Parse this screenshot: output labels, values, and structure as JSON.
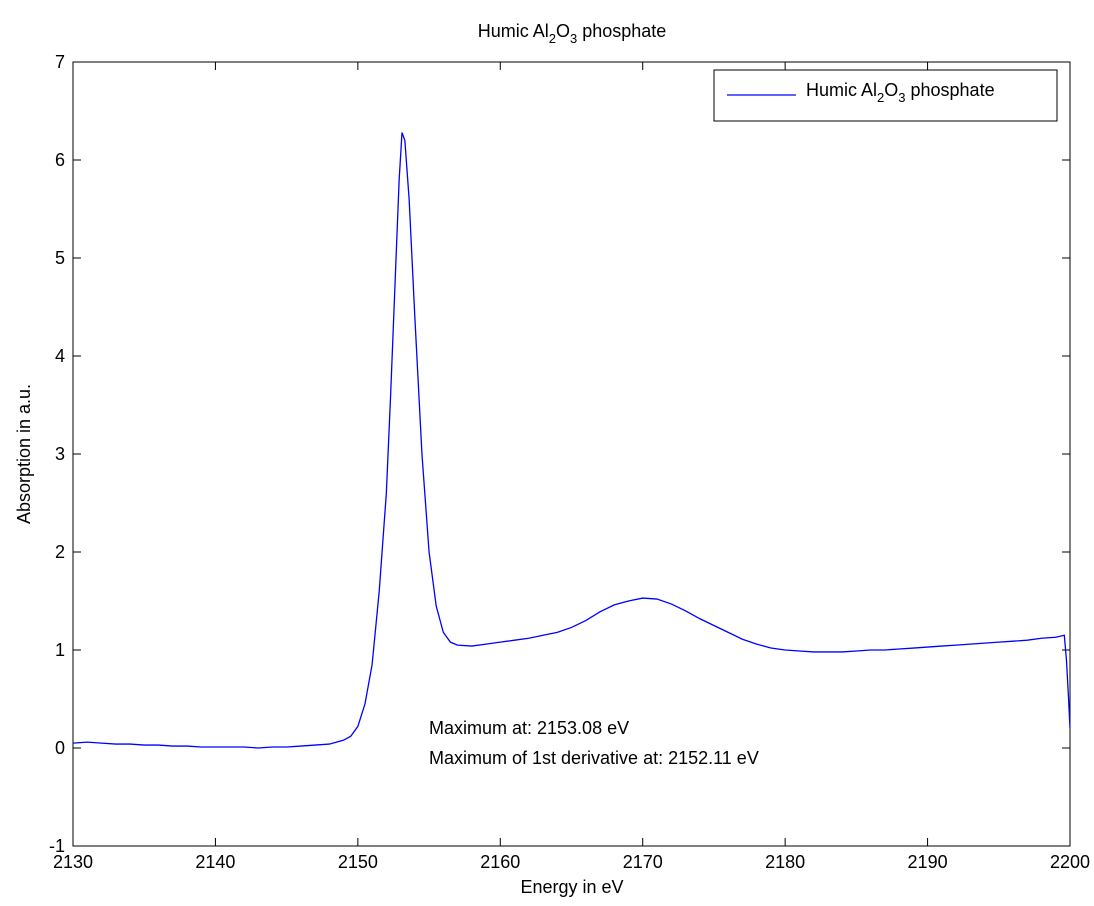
{
  "chart_data": {
    "type": "line",
    "title": {
      "pre": "Humic Al",
      "sub1": "2",
      "mid": "O",
      "sub2": "3",
      "post": " phosphate"
    },
    "xlabel": "Energy in eV",
    "ylabel": "Absorption in a.u.",
    "xlim": [
      2130,
      2200
    ],
    "ylim": [
      -1,
      7
    ],
    "xticks": [
      2130,
      2140,
      2150,
      2160,
      2170,
      2180,
      2190,
      2200
    ],
    "yticks": [
      -1,
      0,
      1,
      2,
      3,
      4,
      5,
      6,
      7
    ],
    "grid": false,
    "legend_position": "top-right",
    "series": [
      {
        "name": {
          "pre": "Humic Al",
          "sub1": "2",
          "mid": "O",
          "sub2": "3",
          "post": " phosphate"
        },
        "color": "#0000ff",
        "points": [
          [
            2130.0,
            0.05
          ],
          [
            2131.0,
            0.06
          ],
          [
            2132.0,
            0.05
          ],
          [
            2133.0,
            0.04
          ],
          [
            2134.0,
            0.04
          ],
          [
            2135.0,
            0.03
          ],
          [
            2136.0,
            0.03
          ],
          [
            2137.0,
            0.02
          ],
          [
            2138.0,
            0.02
          ],
          [
            2139.0,
            0.01
          ],
          [
            2140.0,
            0.01
          ],
          [
            2141.0,
            0.01
          ],
          [
            2142.0,
            0.01
          ],
          [
            2143.0,
            0.0
          ],
          [
            2144.0,
            0.01
          ],
          [
            2145.0,
            0.01
          ],
          [
            2146.0,
            0.02
          ],
          [
            2147.0,
            0.03
          ],
          [
            2148.0,
            0.04
          ],
          [
            2149.0,
            0.08
          ],
          [
            2149.5,
            0.12
          ],
          [
            2150.0,
            0.22
          ],
          [
            2150.5,
            0.45
          ],
          [
            2151.0,
            0.85
          ],
          [
            2151.5,
            1.6
          ],
          [
            2152.0,
            2.6
          ],
          [
            2152.3,
            3.6
          ],
          [
            2152.6,
            4.7
          ],
          [
            2152.9,
            5.8
          ],
          [
            2153.1,
            6.28
          ],
          [
            2153.3,
            6.2
          ],
          [
            2153.6,
            5.6
          ],
          [
            2154.0,
            4.4
          ],
          [
            2154.5,
            3.0
          ],
          [
            2155.0,
            2.0
          ],
          [
            2155.5,
            1.45
          ],
          [
            2156.0,
            1.18
          ],
          [
            2156.5,
            1.08
          ],
          [
            2157.0,
            1.05
          ],
          [
            2158.0,
            1.04
          ],
          [
            2159.0,
            1.06
          ],
          [
            2160.0,
            1.08
          ],
          [
            2161.0,
            1.1
          ],
          [
            2162.0,
            1.12
          ],
          [
            2163.0,
            1.15
          ],
          [
            2164.0,
            1.18
          ],
          [
            2165.0,
            1.23
          ],
          [
            2166.0,
            1.3
          ],
          [
            2167.0,
            1.39
          ],
          [
            2168.0,
            1.46
          ],
          [
            2169.0,
            1.5
          ],
          [
            2170.0,
            1.53
          ],
          [
            2171.0,
            1.52
          ],
          [
            2172.0,
            1.47
          ],
          [
            2173.0,
            1.4
          ],
          [
            2174.0,
            1.32
          ],
          [
            2175.0,
            1.25
          ],
          [
            2176.0,
            1.18
          ],
          [
            2177.0,
            1.11
          ],
          [
            2178.0,
            1.06
          ],
          [
            2179.0,
            1.02
          ],
          [
            2180.0,
            1.0
          ],
          [
            2181.0,
            0.99
          ],
          [
            2182.0,
            0.98
          ],
          [
            2183.0,
            0.98
          ],
          [
            2184.0,
            0.98
          ],
          [
            2185.0,
            0.99
          ],
          [
            2186.0,
            1.0
          ],
          [
            2187.0,
            1.0
          ],
          [
            2188.0,
            1.01
          ],
          [
            2189.0,
            1.02
          ],
          [
            2190.0,
            1.03
          ],
          [
            2191.0,
            1.04
          ],
          [
            2192.0,
            1.05
          ],
          [
            2193.0,
            1.06
          ],
          [
            2194.0,
            1.07
          ],
          [
            2195.0,
            1.08
          ],
          [
            2196.0,
            1.09
          ],
          [
            2197.0,
            1.1
          ],
          [
            2198.0,
            1.12
          ],
          [
            2199.0,
            1.13
          ],
          [
            2199.6,
            1.15
          ],
          [
            2199.75,
            0.9
          ],
          [
            2199.9,
            0.5
          ],
          [
            2200.0,
            0.2
          ]
        ]
      }
    ],
    "annotations": [
      "Maximum at: 2153.08 eV",
      "Maximum of 1st derivative at: 2152.11 eV"
    ]
  }
}
